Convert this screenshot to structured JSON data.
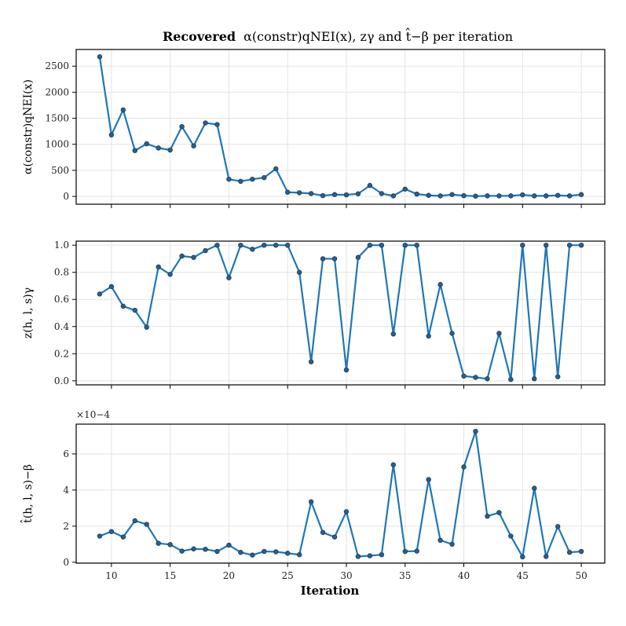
{
  "chart_data": {
    "title": {
      "bold": "Recovered",
      "rest": "α(constr)qNEI(x), zγ and t̂−β per iteration"
    },
    "xlabel": "Iteration",
    "x": [
      9,
      10,
      11,
      12,
      13,
      14,
      15,
      16,
      17,
      18,
      19,
      20,
      21,
      22,
      23,
      24,
      25,
      26,
      27,
      28,
      29,
      30,
      31,
      32,
      33,
      34,
      35,
      36,
      37,
      38,
      39,
      40,
      41,
      42,
      43,
      44,
      45,
      46,
      47,
      48,
      49,
      50
    ],
    "xlim": [
      7.0,
      52.0
    ],
    "xticks": [
      10,
      15,
      20,
      25,
      30,
      35,
      40,
      45,
      50
    ],
    "color": "#1f77b4",
    "grid": true,
    "panels": [
      {
        "type": "line",
        "ylabel": "α(constr)qNEI(x)",
        "ylim": [
          -150,
          2820
        ],
        "yticks": [
          0,
          500,
          1000,
          1500,
          2000,
          2500
        ],
        "ytick_labels": [
          "0",
          "500",
          "1000",
          "1500",
          "2000",
          "2500"
        ],
        "values": [
          2680,
          1180,
          1660,
          880,
          1010,
          930,
          890,
          1340,
          970,
          1410,
          1380,
          330,
          290,
          330,
          360,
          530,
          80,
          70,
          55,
          15,
          35,
          30,
          50,
          210,
          55,
          10,
          140,
          45,
          20,
          10,
          35,
          15,
          5,
          10,
          10,
          10,
          30,
          10,
          10,
          20,
          10,
          35
        ]
      },
      {
        "type": "line",
        "ylabel": "z(h, l, s)γ",
        "ylim": [
          -0.03,
          1.03
        ],
        "yticks": [
          0.0,
          0.2,
          0.4,
          0.6,
          0.8,
          1.0
        ],
        "ytick_labels": [
          "0.0",
          "0.2",
          "0.4",
          "0.6",
          "0.8",
          "1.0"
        ],
        "values": [
          0.64,
          0.695,
          0.55,
          0.52,
          0.395,
          0.84,
          0.785,
          0.92,
          0.91,
          0.96,
          1.0,
          0.76,
          1.0,
          0.97,
          1.0,
          1.0,
          1.0,
          0.8,
          0.14,
          0.9,
          0.9,
          0.08,
          0.91,
          1.0,
          1.0,
          0.345,
          1.0,
          1.0,
          0.33,
          0.71,
          0.35,
          0.035,
          0.025,
          0.015,
          0.35,
          0.01,
          1.0,
          0.015,
          1.0,
          0.03,
          1.0,
          1.0
        ]
      },
      {
        "type": "line",
        "ylabel": "t̂(h, l, s)−β",
        "scale_label": "×10−4",
        "ylim": [
          -0.05,
          7.65
        ],
        "yticks": [
          0,
          2,
          4,
          6
        ],
        "ytick_labels": [
          "0",
          "2",
          "4",
          "6"
        ],
        "values": [
          1.45,
          1.7,
          1.4,
          2.3,
          2.1,
          1.05,
          0.98,
          0.62,
          0.74,
          0.72,
          0.6,
          0.95,
          0.55,
          0.4,
          0.6,
          0.58,
          0.5,
          0.42,
          3.35,
          1.65,
          1.4,
          2.8,
          0.32,
          0.36,
          0.42,
          5.4,
          0.6,
          0.62,
          4.58,
          1.22,
          1.0,
          5.28,
          7.25,
          2.55,
          2.75,
          1.45,
          0.3,
          4.1,
          0.32,
          1.98,
          0.55,
          0.6
        ]
      }
    ]
  }
}
